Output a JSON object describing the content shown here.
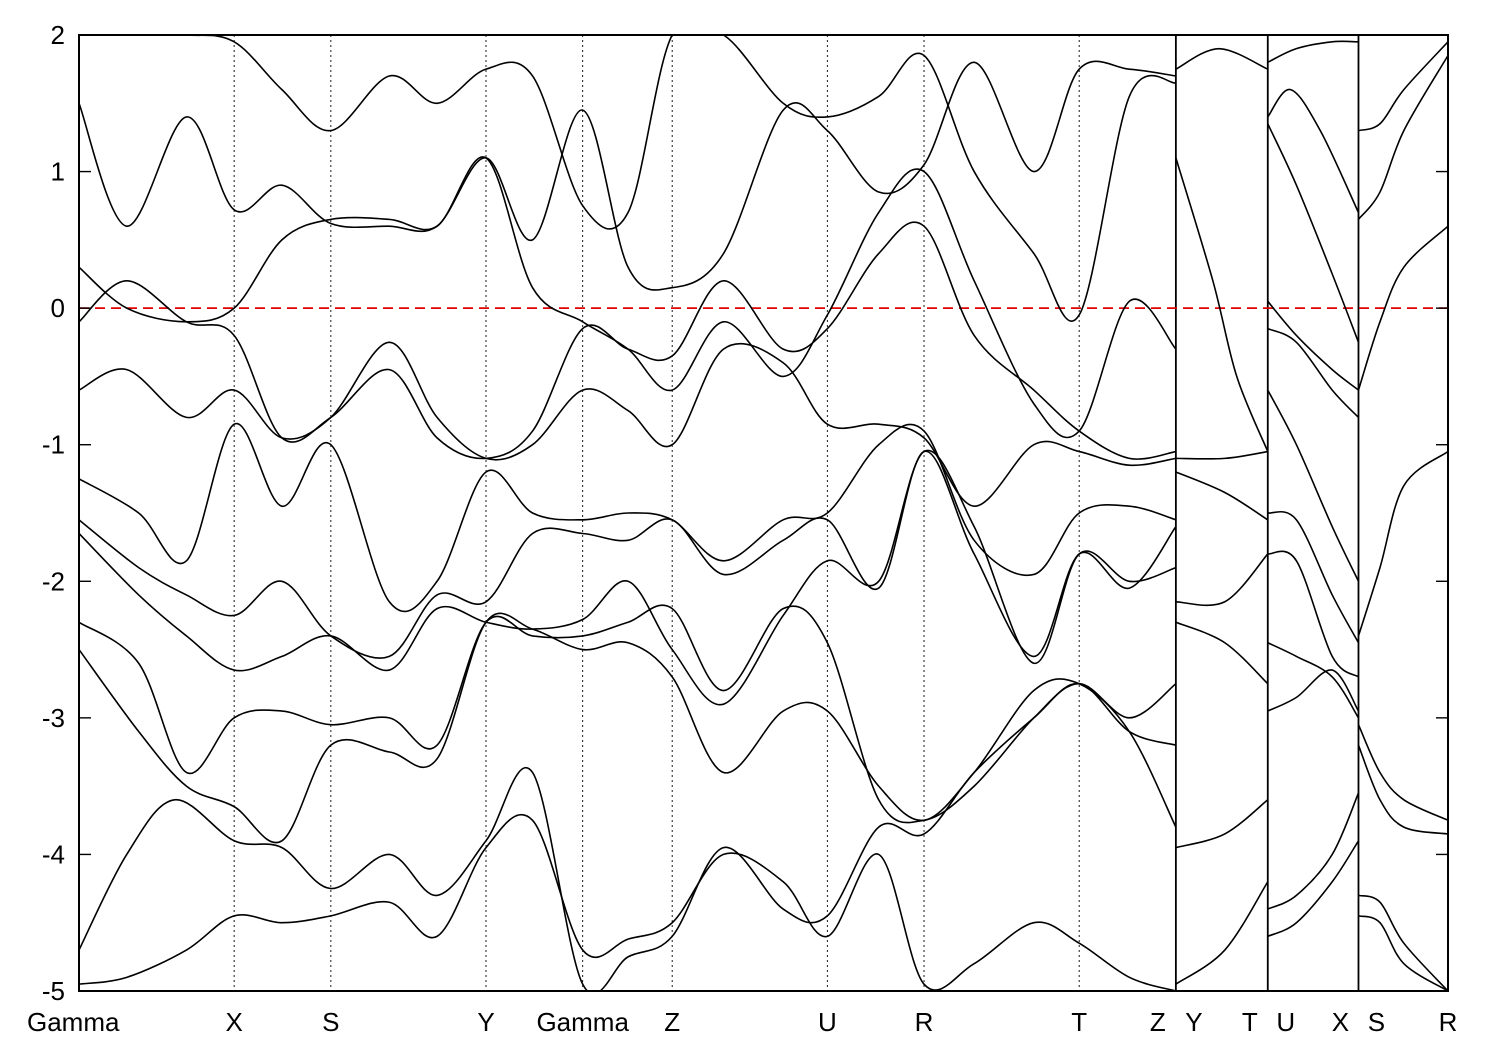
{
  "chart_data": {
    "type": "line",
    "title": "",
    "xlabel": "",
    "ylabel": "",
    "ylim": [
      -5,
      2
    ],
    "yticks": [
      -5,
      -4,
      -3,
      -2,
      -1,
      0,
      1,
      2
    ],
    "ytick_labels": [
      "-5",
      "-4",
      "-3",
      "-2",
      "-1",
      "0",
      "1",
      "2"
    ],
    "xlim": [
      0,
      11.47
    ],
    "kpoints": [
      {
        "label": "Gamma",
        "x": 0.0
      },
      {
        "label": "X",
        "x": 1.3
      },
      {
        "label": "S",
        "x": 2.11
      },
      {
        "label": "Y",
        "x": 3.41
      },
      {
        "label": "Gamma",
        "x": 4.22
      },
      {
        "label": "Z",
        "x": 4.97
      },
      {
        "label": "U",
        "x": 6.27
      },
      {
        "label": "R",
        "x": 7.08
      },
      {
        "label": "T",
        "x": 8.38
      },
      {
        "label": "Z",
        "x": 9.19
      },
      {
        "label": "Y",
        "x": 9.19
      },
      {
        "label": "T",
        "x": 9.96
      },
      {
        "label": "U",
        "x": 9.96
      },
      {
        "label": "X",
        "x": 10.72
      },
      {
        "label": "S",
        "x": 10.72
      },
      {
        "label": "R",
        "x": 11.47
      }
    ],
    "path_breaks": [
      9.19,
      9.96,
      10.72
    ],
    "fermi_level": 0,
    "fermi_color": "#e00000",
    "band_color": "#000000",
    "series": [
      {
        "x": [
          0,
          0.4,
          0.9,
          1.3,
          1.7,
          2.11,
          2.6,
          3.0,
          3.41,
          3.8,
          4.22,
          4.6,
          4.97,
          5.4,
          5.9,
          6.27,
          6.7,
          7.08,
          7.5,
          8.0,
          8.38,
          8.8,
          9.19
        ],
        "y": [
          -4.95,
          -4.9,
          -4.7,
          -4.45,
          -4.5,
          -4.45,
          -4.35,
          -4.6,
          -3.95,
          -3.75,
          -4.7,
          -4.62,
          -4.5,
          -4.0,
          -4.2,
          -4.6,
          -4.0,
          -4.95,
          -4.8,
          -4.5,
          -4.65,
          -4.9,
          -5.0
        ]
      },
      {
        "x": [
          0,
          0.4,
          0.8,
          1.3,
          1.7,
          2.11,
          2.6,
          3.0,
          3.41,
          3.8,
          4.22,
          4.6,
          4.97,
          5.4,
          5.9,
          6.27,
          6.7,
          7.08,
          7.5,
          8.0,
          8.38,
          8.8,
          9.19
        ],
        "y": [
          -4.7,
          -4.0,
          -3.6,
          -3.9,
          -3.95,
          -4.25,
          -4.0,
          -4.3,
          -3.9,
          -3.4,
          -4.95,
          -4.75,
          -4.6,
          -3.95,
          -4.4,
          -4.45,
          -3.8,
          -3.85,
          -3.4,
          -3.0,
          -2.75,
          -3.1,
          -3.2
        ]
      },
      {
        "x": [
          0,
          0.5,
          0.9,
          1.3,
          1.7,
          2.11,
          2.6,
          3.0,
          3.41,
          3.8,
          4.22,
          4.6,
          4.97,
          5.4,
          5.9,
          6.27,
          6.7,
          7.08,
          7.5,
          8.0,
          8.38,
          8.8,
          9.19
        ],
        "y": [
          -2.5,
          -3.1,
          -3.5,
          -3.65,
          -3.9,
          -3.2,
          -3.25,
          -3.3,
          -2.3,
          -2.35,
          -2.5,
          -2.45,
          -2.7,
          -3.4,
          -2.95,
          -2.95,
          -3.5,
          -3.75,
          -3.4,
          -2.8,
          -2.75,
          -3.1,
          -3.8
        ]
      },
      {
        "x": [
          0,
          0.5,
          0.9,
          1.3,
          1.7,
          2.11,
          2.6,
          3.0,
          3.41,
          3.8,
          4.22,
          4.6,
          4.97,
          5.4,
          5.9,
          6.27,
          6.7,
          7.08,
          7.5,
          8.0,
          8.38,
          8.8,
          9.19
        ],
        "y": [
          -2.3,
          -2.6,
          -3.4,
          -3.0,
          -2.95,
          -3.05,
          -3.0,
          -3.2,
          -2.3,
          -2.4,
          -2.4,
          -2.3,
          -2.2,
          -2.8,
          -2.2,
          -2.45,
          -3.6,
          -3.75,
          -3.5,
          -3.0,
          -2.75,
          -3.0,
          -2.75
        ]
      },
      {
        "x": [
          0,
          0.5,
          0.9,
          1.3,
          1.7,
          2.11,
          2.6,
          3.0,
          3.41,
          3.8,
          4.22,
          4.6,
          4.97,
          5.4,
          5.9,
          6.27,
          6.7,
          7.08,
          7.5,
          8.0,
          8.38,
          8.8,
          9.19
        ],
        "y": [
          -1.65,
          -2.1,
          -2.4,
          -2.65,
          -2.55,
          -2.4,
          -2.65,
          -2.2,
          -2.3,
          -2.35,
          -2.28,
          -2.0,
          -2.5,
          -2.9,
          -2.25,
          -1.85,
          -2.0,
          -1.05,
          -1.6,
          -2.6,
          -1.8,
          -2.0,
          -1.9
        ]
      },
      {
        "x": [
          0,
          0.5,
          0.9,
          1.3,
          1.7,
          2.11,
          2.6,
          3.0,
          3.41,
          3.8,
          4.22,
          4.6,
          4.97,
          5.4,
          5.9,
          6.27,
          6.7,
          7.08,
          7.5,
          8.0,
          8.38,
          8.8,
          9.19
        ],
        "y": [
          -1.55,
          -1.9,
          -2.1,
          -2.25,
          -2.0,
          -2.4,
          -2.55,
          -2.1,
          -2.15,
          -1.65,
          -1.65,
          -1.7,
          -1.55,
          -1.95,
          -1.7,
          -1.55,
          -2.05,
          -1.05,
          -1.8,
          -2.55,
          -1.8,
          -2.05,
          -1.6
        ]
      },
      {
        "x": [
          0,
          0.5,
          0.9,
          1.3,
          1.7,
          2.11,
          2.6,
          3.0,
          3.41,
          3.8,
          4.22,
          4.6,
          4.97,
          5.4,
          5.9,
          6.27,
          6.7,
          7.08,
          7.5,
          8.0,
          8.38,
          8.8,
          9.19
        ],
        "y": [
          -1.25,
          -1.5,
          -1.85,
          -0.85,
          -1.45,
          -1.0,
          -2.15,
          -2.0,
          -1.2,
          -1.5,
          -1.55,
          -1.5,
          -1.55,
          -1.85,
          -1.55,
          -1.5,
          -1.0,
          -0.9,
          -1.7,
          -1.95,
          -1.5,
          -1.45,
          -1.55
        ]
      },
      {
        "x": [
          0,
          0.4,
          0.9,
          1.3,
          1.7,
          2.11,
          2.6,
          3.0,
          3.41,
          3.8,
          4.22,
          4.6,
          4.97,
          5.4,
          5.9,
          6.27,
          6.7,
          7.08,
          7.5,
          8.0,
          8.38,
          8.8,
          9.19
        ],
        "y": [
          -0.6,
          -0.45,
          -0.8,
          -0.6,
          -0.95,
          -0.8,
          -0.25,
          -0.8,
          -1.1,
          -1.0,
          -0.6,
          -0.75,
          -1.0,
          -0.3,
          -0.4,
          -0.85,
          -0.85,
          -0.95,
          -1.45,
          -1.0,
          -1.05,
          -1.15,
          -1.1
        ]
      },
      {
        "x": [
          0,
          0.4,
          0.9,
          1.3,
          1.7,
          2.11,
          2.6,
          3.0,
          3.41,
          3.8,
          4.22,
          4.6,
          4.97,
          5.4,
          5.9,
          6.27,
          6.7,
          7.08,
          7.5,
          8.0,
          8.38,
          8.8,
          9.19
        ],
        "y": [
          -0.1,
          0.2,
          -0.1,
          -0.2,
          -0.95,
          -0.8,
          -0.45,
          -0.95,
          -1.1,
          -0.9,
          -0.15,
          -0.3,
          -0.35,
          0.2,
          -0.3,
          -0.15,
          0.4,
          0.6,
          -0.2,
          -0.6,
          -0.9,
          -1.1,
          -1.05
        ]
      },
      {
        "x": [
          0,
          0.4,
          0.9,
          1.3,
          1.7,
          2.11,
          2.6,
          3.0,
          3.41,
          3.8,
          4.22,
          4.6,
          4.97,
          5.4,
          5.9,
          6.27,
          6.7,
          7.08,
          7.5,
          8.0,
          8.38,
          8.8,
          9.19
        ],
        "y": [
          0.3,
          0.0,
          -0.1,
          0.0,
          0.5,
          0.65,
          0.65,
          0.6,
          1.1,
          0.15,
          -0.1,
          -0.3,
          -0.6,
          -0.1,
          -0.5,
          -0.05,
          0.7,
          1.0,
          0.2,
          -0.7,
          -0.9,
          0.05,
          -0.3
        ]
      },
      {
        "x": [
          0,
          0.4,
          0.9,
          1.3,
          1.7,
          2.11,
          2.6,
          3.0,
          3.41,
          3.8,
          4.22,
          4.6,
          4.97,
          5.4,
          5.9,
          6.27,
          6.7,
          7.08,
          7.5,
          8.0,
          8.38,
          8.8,
          9.19
        ],
        "y": [
          1.5,
          0.6,
          1.4,
          0.72,
          0.9,
          0.62,
          0.6,
          0.6,
          1.1,
          0.5,
          1.45,
          0.3,
          0.15,
          0.4,
          1.45,
          1.3,
          0.85,
          1.05,
          1.8,
          1.0,
          1.75,
          1.75,
          1.7
        ]
      },
      {
        "x": [
          0,
          0.4,
          0.9,
          1.3,
          1.7,
          2.11,
          2.6,
          3.0,
          3.41,
          3.8,
          4.22,
          4.6,
          4.97,
          5.4,
          5.9,
          6.27,
          6.7,
          7.08,
          7.5,
          8.0,
          8.38,
          8.8,
          9.19
        ],
        "y": [
          2.0,
          2.0,
          2.0,
          1.95,
          1.6,
          1.3,
          1.7,
          1.5,
          1.75,
          1.7,
          0.75,
          0.7,
          2.0,
          2.0,
          1.5,
          1.4,
          1.55,
          1.85,
          1.0,
          0.4,
          -0.05,
          1.55,
          1.65
        ]
      },
      {
        "x": [
          9.19,
          9.5,
          9.7,
          9.96
        ],
        "y": [
          1.1,
          0.2,
          -0.5,
          -1.05
        ]
      },
      {
        "x": [
          9.19,
          9.55,
          9.96
        ],
        "y": [
          1.75,
          1.9,
          1.75
        ]
      },
      {
        "x": [
          9.19,
          9.6,
          9.96
        ],
        "y": [
          -1.1,
          -1.1,
          -1.05
        ]
      },
      {
        "x": [
          9.19,
          9.6,
          9.96
        ],
        "y": [
          -1.2,
          -1.35,
          -1.55
        ]
      },
      {
        "x": [
          9.19,
          9.6,
          9.96
        ],
        "y": [
          -2.15,
          -2.15,
          -1.8
        ]
      },
      {
        "x": [
          9.19,
          9.6,
          9.96
        ],
        "y": [
          -2.3,
          -2.45,
          -2.75
        ]
      },
      {
        "x": [
          9.19,
          9.6,
          9.96
        ],
        "y": [
          -3.95,
          -3.85,
          -3.6
        ]
      },
      {
        "x": [
          9.19,
          9.6,
          9.96
        ],
        "y": [
          -4.95,
          -4.7,
          -4.2
        ]
      },
      {
        "x": [
          9.96,
          10.15,
          10.4,
          10.72
        ],
        "y": [
          1.4,
          1.6,
          1.3,
          0.7
        ]
      },
      {
        "x": [
          9.96,
          10.2,
          10.5,
          10.72
        ],
        "y": [
          1.8,
          1.9,
          1.95,
          1.95
        ]
      },
      {
        "x": [
          9.96,
          10.2,
          10.5,
          10.72
        ],
        "y": [
          1.35,
          0.9,
          0.25,
          -0.25
        ]
      },
      {
        "x": [
          9.96,
          10.2,
          10.5,
          10.72
        ],
        "y": [
          0.05,
          -0.2,
          -0.45,
          -0.6
        ]
      },
      {
        "x": [
          9.96,
          10.2,
          10.5,
          10.72
        ],
        "y": [
          -0.15,
          -0.25,
          -0.6,
          -0.8
        ]
      },
      {
        "x": [
          9.96,
          10.2,
          10.5,
          10.72
        ],
        "y": [
          -0.6,
          -1.0,
          -1.6,
          -2.0
        ]
      },
      {
        "x": [
          9.96,
          10.2,
          10.5,
          10.72
        ],
        "y": [
          -1.5,
          -1.55,
          -2.1,
          -2.45
        ]
      },
      {
        "x": [
          9.96,
          10.2,
          10.5,
          10.72
        ],
        "y": [
          -1.8,
          -1.85,
          -2.55,
          -2.7
        ]
      },
      {
        "x": [
          9.96,
          10.2,
          10.5,
          10.72
        ],
        "y": [
          -2.45,
          -2.55,
          -2.7,
          -3.0
        ]
      },
      {
        "x": [
          9.96,
          10.2,
          10.5,
          10.72
        ],
        "y": [
          -2.95,
          -2.85,
          -2.65,
          -2.95
        ]
      },
      {
        "x": [
          9.96,
          10.2,
          10.5,
          10.72
        ],
        "y": [
          -4.4,
          -4.3,
          -4.0,
          -3.55
        ]
      },
      {
        "x": [
          9.96,
          10.2,
          10.5,
          10.72
        ],
        "y": [
          -4.6,
          -4.5,
          -4.2,
          -3.9
        ]
      },
      {
        "x": [
          10.72,
          10.9,
          11.1,
          11.47
        ],
        "y": [
          1.3,
          1.35,
          1.6,
          1.95
        ]
      },
      {
        "x": [
          10.72,
          10.9,
          11.1,
          11.47
        ],
        "y": [
          0.65,
          0.85,
          1.3,
          1.85
        ]
      },
      {
        "x": [
          10.72,
          10.9,
          11.1,
          11.47
        ],
        "y": [
          -0.6,
          -0.1,
          0.3,
          0.6
        ]
      },
      {
        "x": [
          10.72,
          10.9,
          11.1,
          11.47
        ],
        "y": [
          -2.4,
          -1.9,
          -1.3,
          -1.05
        ]
      },
      {
        "x": [
          10.72,
          10.9,
          11.1,
          11.47
        ],
        "y": [
          -3.05,
          -3.4,
          -3.6,
          -3.75
        ]
      },
      {
        "x": [
          10.72,
          10.9,
          11.1,
          11.47
        ],
        "y": [
          -3.2,
          -3.6,
          -3.8,
          -3.85
        ]
      },
      {
        "x": [
          10.72,
          10.9,
          11.1,
          11.47
        ],
        "y": [
          -4.45,
          -4.5,
          -4.8,
          -5.0
        ]
      },
      {
        "x": [
          10.72,
          10.9,
          11.1,
          11.47
        ],
        "y": [
          -4.3,
          -4.35,
          -4.65,
          -5.0
        ]
      }
    ]
  }
}
